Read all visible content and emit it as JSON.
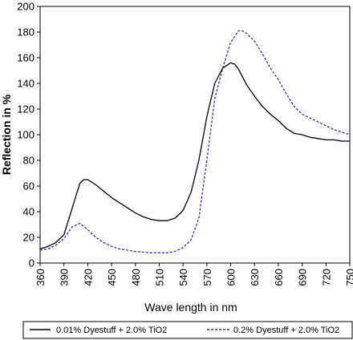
{
  "chart_data": {
    "type": "line",
    "title": "",
    "xlabel": "Wave length in nm",
    "ylabel": "Reflection in %",
    "xlim": [
      360,
      750
    ],
    "ylim": [
      0,
      200
    ],
    "x_ticks": [
      360,
      390,
      420,
      450,
      480,
      510,
      540,
      570,
      600,
      630,
      660,
      690,
      720,
      750
    ],
    "y_ticks": [
      0,
      20,
      40,
      60,
      80,
      100,
      120,
      140,
      160,
      180,
      200
    ],
    "grid": false,
    "legend_position": "bottom",
    "series": [
      {
        "name": "0.01% Dyestuff + 2.0% TiO2",
        "color": "#000000",
        "style": "solid",
        "x": [
          360,
          370,
          380,
          390,
          400,
          410,
          415,
          420,
          430,
          440,
          450,
          460,
          470,
          480,
          490,
          500,
          510,
          520,
          530,
          540,
          550,
          560,
          570,
          580,
          590,
          600,
          605,
          610,
          620,
          630,
          640,
          650,
          660,
          670,
          680,
          690,
          700,
          710,
          720,
          730,
          740,
          750
        ],
        "y": [
          11,
          13,
          16,
          22,
          42,
          62,
          65,
          65,
          61,
          56,
          51,
          47,
          43,
          39,
          36,
          34,
          33,
          33,
          35,
          41,
          55,
          80,
          114,
          140,
          152,
          156,
          155,
          151,
          139,
          130,
          122,
          116,
          111,
          105,
          101,
          100,
          98,
          97,
          96,
          96,
          95,
          95
        ]
      },
      {
        "name": "0.2% Dyestuff + 2.0% TiO2",
        "color": "#2b2bcc",
        "style": "dashed",
        "x": [
          360,
          370,
          380,
          390,
          400,
          410,
          420,
          430,
          440,
          450,
          460,
          470,
          480,
          490,
          500,
          510,
          520,
          530,
          540,
          550,
          560,
          570,
          580,
          590,
          600,
          610,
          615,
          620,
          630,
          640,
          650,
          660,
          670,
          680,
          690,
          700,
          710,
          720,
          730,
          740,
          750
        ],
        "y": [
          10,
          11,
          14,
          19,
          28,
          31,
          26,
          20,
          16,
          13,
          11,
          10,
          9,
          8.5,
          8,
          8,
          8,
          9,
          12,
          18,
          35,
          80,
          128,
          152,
          172,
          181,
          181,
          179,
          173,
          163,
          152,
          143,
          132,
          122,
          116,
          113,
          110,
          107,
          104,
          102,
          100
        ]
      }
    ]
  }
}
